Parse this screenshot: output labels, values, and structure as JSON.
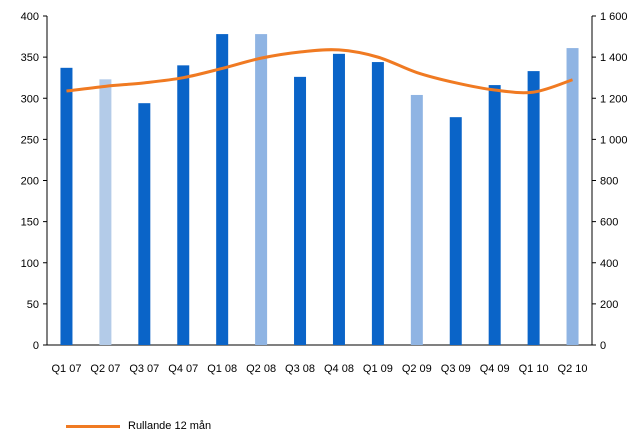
{
  "chart_data": {
    "type": "bar",
    "categories": [
      "Q1 07",
      "Q2 07",
      "Q3 07",
      "Q4 07",
      "Q1 08",
      "Q2 08",
      "Q3 08",
      "Q4 08",
      "Q1 09",
      "Q2 09",
      "Q3 09",
      "Q4 09",
      "Q1 10",
      "Q2 10"
    ],
    "series": [
      {
        "type": "bar",
        "axis": "left",
        "values": [
          337,
          323,
          294,
          340,
          378,
          378,
          326,
          354,
          344,
          304,
          277,
          316,
          333,
          361
        ],
        "colors": [
          "#0a64c8",
          "#b3cbe8",
          "#0a64c8",
          "#0a64c8",
          "#0a64c8",
          "#8fb4e3",
          "#0a64c8",
          "#0a64c8",
          "#0a64c8",
          "#8fb4e3",
          "#0a64c8",
          "#0a64c8",
          "#0a64c8",
          "#8fb4e3"
        ]
      },
      {
        "type": "line",
        "axis": "right",
        "name": "Rullande 12 mån",
        "color": "#f07a22",
        "values": [
          1235,
          1258,
          1275,
          1300,
          1345,
          1395,
          1425,
          1435,
          1400,
          1325,
          1275,
          1240,
          1230,
          1290
        ]
      }
    ],
    "ylim": [
      0,
      400
    ],
    "yticks": [
      0,
      50,
      100,
      150,
      200,
      250,
      300,
      350,
      400
    ],
    "y2lim": [
      0,
      1600
    ],
    "y2ticks": [
      0,
      200,
      400,
      600,
      800,
      1000,
      1200,
      1400,
      1600
    ],
    "y2ticklabels": [
      "0",
      "200",
      "400",
      "600",
      "800",
      "1 000",
      "1 200",
      "1 400",
      "1 600"
    ],
    "grid": false,
    "legend": "bottom-left"
  }
}
